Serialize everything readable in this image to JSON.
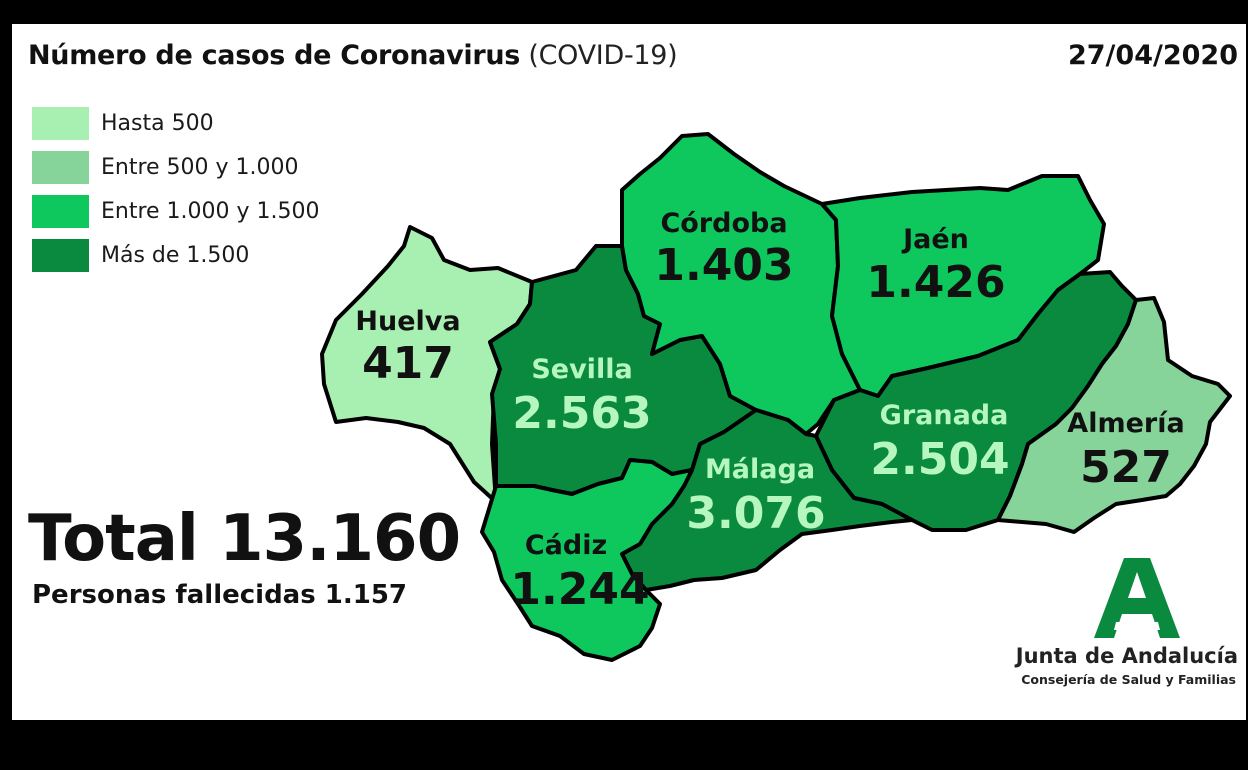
{
  "header": {
    "title_main": "Número de casos de Coronavirus",
    "title_sub": "(COVID-19)",
    "date": "27/04/2020"
  },
  "legend": [
    {
      "label": "Hasta 500",
      "color": "#a8f0b2"
    },
    {
      "label": "Entre 500 y 1.000",
      "color": "#86d49a"
    },
    {
      "label": "Entre 1.000 y 1.500",
      "color": "#0ec85e"
    },
    {
      "label": "Más de 1.500",
      "color": "#0a8a3f"
    }
  ],
  "provinces": [
    {
      "name": "Huelva",
      "cases": "417",
      "color": "#a8f0b2",
      "text_color": "#111111"
    },
    {
      "name": "Sevilla",
      "cases": "2.563",
      "color": "#0a8a3f",
      "text_color": "#b6f7c0"
    },
    {
      "name": "Córdoba",
      "cases": "1.403",
      "color": "#0ec85e",
      "text_color": "#111111"
    },
    {
      "name": "Jaén",
      "cases": "1.426",
      "color": "#0ec85e",
      "text_color": "#111111"
    },
    {
      "name": "Granada",
      "cases": "2.504",
      "color": "#0a8a3f",
      "text_color": "#b6f7c0"
    },
    {
      "name": "Almería",
      "cases": "527",
      "color": "#86d49a",
      "text_color": "#111111"
    },
    {
      "name": "Málaga",
      "cases": "3.076",
      "color": "#0a8a3f",
      "text_color": "#b6f7c0"
    },
    {
      "name": "Cádiz",
      "cases": "1.244",
      "color": "#0ec85e",
      "text_color": "#111111"
    }
  ],
  "summary": {
    "total": "Total 13.160",
    "deaths": "Personas fallecidas 1.157"
  },
  "organization": {
    "name": "Junta de Andalucía",
    "subtitle": "Consejería de Salud y Familias",
    "logo_color": "#0a8a3f"
  }
}
